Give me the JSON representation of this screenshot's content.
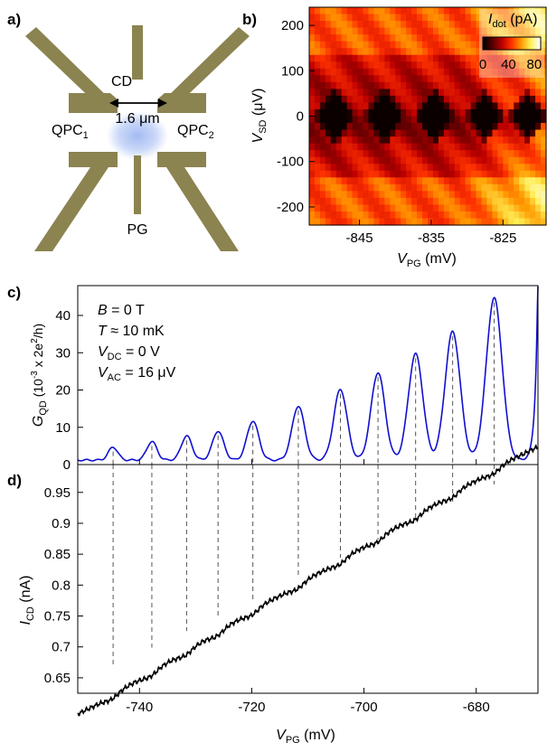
{
  "panels": {
    "a": "a)",
    "b": "b)",
    "c": "c)",
    "d": "d)"
  },
  "device": {
    "cd": "CD",
    "scale": "1.6 μm",
    "qpc1_main": "QPC",
    "qpc1_sub": "1",
    "qpc2_main": "QPC",
    "qpc2_sub": "2",
    "pg": "PG",
    "gate_color": "#8b8350",
    "dot_color": "#9fb8f2"
  },
  "chart_data": [
    {
      "type": "heatmap",
      "panel": "b",
      "x_ticks": [
        "-845",
        "-835",
        "-825"
      ],
      "x_tick_values": [
        -845,
        -835,
        -825
      ],
      "xlim": [
        -852,
        -819
      ],
      "xlabel_main": "V",
      "xlabel_sub": "PG",
      "xlabel_unit": " (mV)",
      "y_ticks": [
        "200",
        "100",
        "0",
        "-100",
        "-200"
      ],
      "y_tick_values": [
        200,
        100,
        0,
        -100,
        -200
      ],
      "ylim": [
        -240,
        240
      ],
      "ylabel_main": "V",
      "ylabel_sub": "SD",
      "ylabel_unit": " (μV)",
      "colorbar": {
        "label_main": "I",
        "label_sub": "dot",
        "label_unit": " (pA)",
        "ticks": [
          "0",
          "40",
          "80"
        ],
        "range": [
          0,
          90
        ],
        "colors": [
          "#000000",
          "#5a0000",
          "#c00000",
          "#ff3300",
          "#ff9a00",
          "#ffee55",
          "#ffffff"
        ]
      },
      "diamonds": [
        {
          "center": -848.5,
          "halfwidth": 3.2,
          "halfheight": 70
        },
        {
          "center": -841.5,
          "halfwidth": 3.2,
          "halfheight": 72
        },
        {
          "center": -834.5,
          "halfwidth": 3.2,
          "halfheight": 68
        },
        {
          "center": -827.5,
          "halfwidth": 3.0,
          "halfheight": 60
        },
        {
          "center": -821.5,
          "halfwidth": 3.0,
          "halfheight": 55
        }
      ]
    },
    {
      "type": "line",
      "panel": "c",
      "annotations": [
        {
          "main": "B",
          "sub": "",
          "rest": " = 0 T"
        },
        {
          "main": "T",
          "sub": "",
          "rest": " ≈ 10 mK"
        },
        {
          "main": "V",
          "sub": "DC",
          "rest": " = 0 V"
        },
        {
          "main": "V",
          "sub": "AC",
          "rest": " = 16 μV"
        }
      ],
      "ylabel_main": "G",
      "ylabel_sub": "QD",
      "ylabel_unit": " (10",
      "ylabel_exp": "-3",
      "ylabel_tail": " x 2e",
      "ylabel_exp2": "2",
      "ylabel_end": "/h)",
      "y_ticks": [
        "0",
        "10",
        "20",
        "30",
        "40"
      ],
      "y_tick_values": [
        0,
        10,
        20,
        30,
        40
      ],
      "ylim": [
        0,
        48
      ],
      "xlim": [
        -751,
        -669
      ],
      "color": "#1010d0",
      "baseline": 1.2,
      "peaks": [
        {
          "x": -744.7,
          "height": 3.5
        },
        {
          "x": -737.8,
          "height": 5.0
        },
        {
          "x": -731.6,
          "height": 6.5
        },
        {
          "x": -726.0,
          "height": 7.8
        },
        {
          "x": -719.8,
          "height": 10.5
        },
        {
          "x": -711.7,
          "height": 14.5
        },
        {
          "x": -704.2,
          "height": 19.0
        },
        {
          "x": -697.5,
          "height": 23.5
        },
        {
          "x": -690.8,
          "height": 28.5
        },
        {
          "x": -684.2,
          "height": 34.5
        },
        {
          "x": -676.8,
          "height": 43.5
        }
      ],
      "edge": {
        "x": -669,
        "height": 50
      }
    },
    {
      "type": "line",
      "panel": "d",
      "xlabel_main": "V",
      "xlabel_sub": "PG",
      "xlabel_unit": " (mV)",
      "x_ticks": [
        "-740",
        "-720",
        "-700",
        "-680"
      ],
      "x_tick_values": [
        -740,
        -720,
        -700,
        -680
      ],
      "xlim": [
        -751,
        -669
      ],
      "ylabel_main": "I",
      "ylabel_sub": "CD",
      "ylabel_unit": " (nA)",
      "y_ticks": [
        "0.65",
        "0.7",
        "0.75",
        "0.8",
        "0.85",
        "0.9",
        "0.95"
      ],
      "y_tick_values": [
        0.65,
        0.7,
        0.75,
        0.8,
        0.85,
        0.9,
        0.95
      ],
      "ylim": [
        0.625,
        0.995
      ],
      "color": "#000000",
      "start": [
        -751,
        0.63
      ],
      "end": [
        -669,
        0.985
      ],
      "step_size": 0.007
    }
  ]
}
